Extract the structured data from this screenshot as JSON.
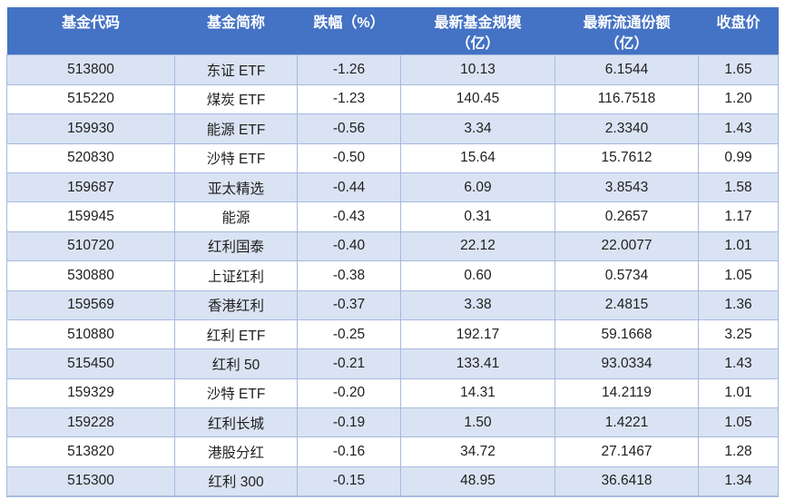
{
  "table": {
    "columns": [
      {
        "label": "基金代码"
      },
      {
        "label": "基金简称"
      },
      {
        "label": "跌幅（%）"
      },
      {
        "label": "最新基金规模\n（亿）"
      },
      {
        "label": "最新流通份额\n（亿）"
      },
      {
        "label": "收盘价"
      }
    ],
    "rows": [
      [
        "513800",
        "东证 ETF",
        "-1.26",
        "10.13",
        "6.1544",
        "1.65"
      ],
      [
        "515220",
        "煤炭 ETF",
        "-1.23",
        "140.45",
        "116.7518",
        "1.20"
      ],
      [
        "159930",
        "能源 ETF",
        "-0.56",
        "3.34",
        "2.3340",
        "1.43"
      ],
      [
        "520830",
        "沙特 ETF",
        "-0.50",
        "15.64",
        "15.7612",
        "0.99"
      ],
      [
        "159687",
        "亚太精选",
        "-0.44",
        "6.09",
        "3.8543",
        "1.58"
      ],
      [
        "159945",
        "能源",
        "-0.43",
        "0.31",
        "0.2657",
        "1.17"
      ],
      [
        "510720",
        "红利国泰",
        "-0.40",
        "22.12",
        "22.0077",
        "1.01"
      ],
      [
        "530880",
        "上证红利",
        "-0.38",
        "0.60",
        "0.5734",
        "1.05"
      ],
      [
        "159569",
        "香港红利",
        "-0.37",
        "3.38",
        "2.4815",
        "1.36"
      ],
      [
        "510880",
        "红利 ETF",
        "-0.25",
        "192.17",
        "59.1668",
        "3.25"
      ],
      [
        "515450",
        "红利 50",
        "-0.21",
        "133.41",
        "93.0334",
        "1.43"
      ],
      [
        "159329",
        "沙特 ETF",
        "-0.20",
        "14.31",
        "14.2119",
        "1.01"
      ],
      [
        "159228",
        "红利长城",
        "-0.19",
        "1.50",
        "1.4221",
        "1.05"
      ],
      [
        "513820",
        "港股分红",
        "-0.16",
        "34.72",
        "27.1467",
        "1.28"
      ],
      [
        "515300",
        "红利 300",
        "-0.15",
        "48.95",
        "36.6418",
        "1.34"
      ]
    ],
    "colors": {
      "header_bg": "#4472c4",
      "header_text": "#ffffff",
      "band_bg": "#dae3f3",
      "row_bg": "#ffffff",
      "border": "#a6bae0",
      "text": "#1f1f1f"
    }
  }
}
